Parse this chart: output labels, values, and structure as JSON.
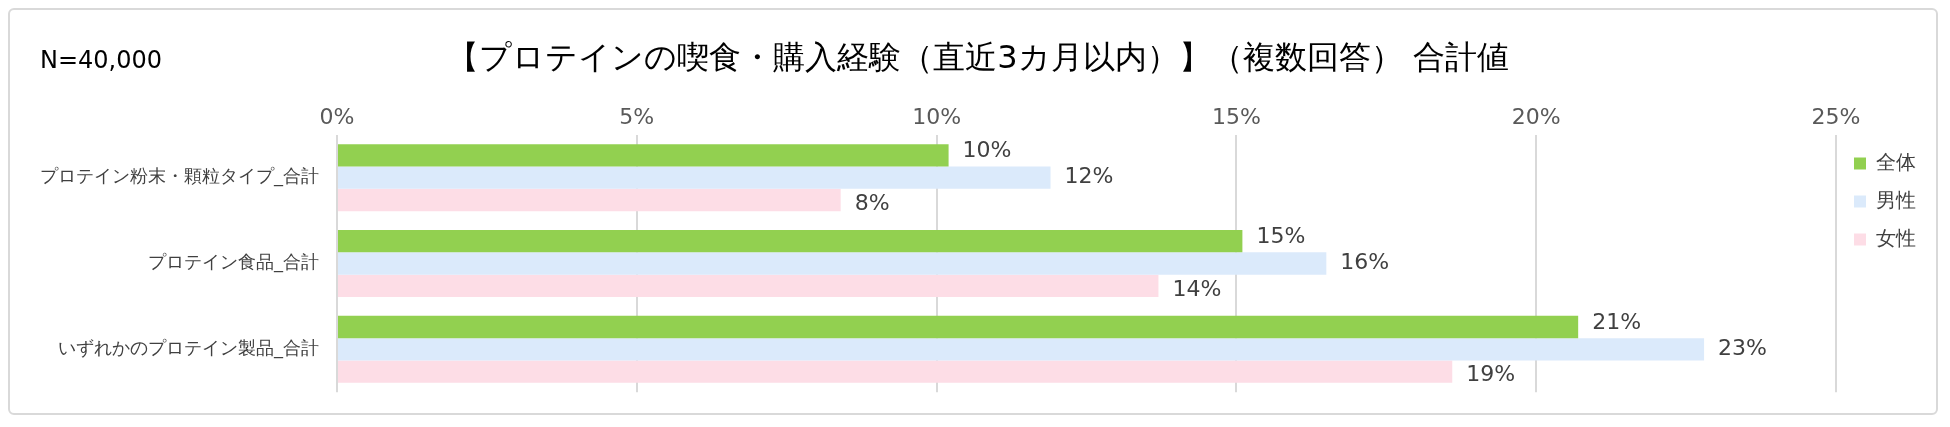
{
  "chart_data": {
    "type": "bar",
    "orientation": "horizontal",
    "title": "【プロテインの喫食・購入経験（直近3カ月以内）】（複数回答） 合計値",
    "annotations": [
      "N=40,000"
    ],
    "categories": [
      "プロテイン粉末・顆粒タイプ_合計",
      "プロテイン食品_合計",
      "いずれかのプロテイン製品_合計"
    ],
    "series": [
      {
        "name": "全体",
        "color": "#92d050",
        "values": [
          10.2,
          15.1,
          20.7
        ],
        "value_labels": [
          "10%",
          "15%",
          "21%"
        ]
      },
      {
        "name": "男性",
        "color": "#dbeafb",
        "values": [
          11.9,
          16.5,
          22.8
        ],
        "value_labels": [
          "12%",
          "16%",
          "23%"
        ]
      },
      {
        "name": "女性",
        "color": "#fddde6",
        "values": [
          8.4,
          13.7,
          18.6
        ],
        "value_labels": [
          "8%",
          "14%",
          "19%"
        ]
      }
    ],
    "xlim": [
      0,
      25
    ],
    "xticks": [
      {
        "value": 0,
        "label": "0%"
      },
      {
        "value": 5,
        "label": "5%"
      },
      {
        "value": 10,
        "label": "10%"
      },
      {
        "value": 15,
        "label": "15%"
      },
      {
        "value": 20,
        "label": "20%"
      },
      {
        "value": 25,
        "label": "25%"
      }
    ],
    "grid": "x",
    "legend": "right"
  }
}
